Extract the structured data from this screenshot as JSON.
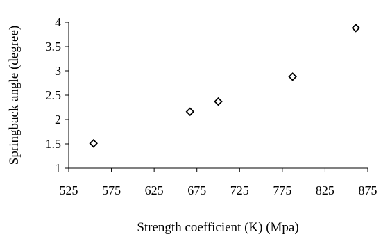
{
  "chart_data": {
    "type": "scatter",
    "title": "",
    "xlabel": "Strength coefficient (K) (Mpa)",
    "ylabel": "Springback angle (degree)",
    "xlim": [
      525,
      875
    ],
    "ylim": [
      1,
      4
    ],
    "x_ticks": [
      525,
      575,
      625,
      675,
      725,
      775,
      825,
      875
    ],
    "y_ticks": [
      1,
      1.5,
      2,
      2.5,
      3,
      3.5,
      4
    ],
    "x_tick_labels": [
      "525",
      "575",
      "625",
      "675",
      "725",
      "775",
      "825",
      "875"
    ],
    "y_tick_labels": [
      "1",
      "1.5",
      "2",
      "2.5",
      "3",
      "3.5",
      "4"
    ],
    "grid": false,
    "legend": "none",
    "marker": "diamond-open",
    "marker_color": "#000000",
    "series": [
      {
        "x": [
          554,
          667,
          700,
          787,
          861
        ],
        "y": [
          1.51,
          2.16,
          2.37,
          2.88,
          3.88
        ]
      }
    ]
  }
}
